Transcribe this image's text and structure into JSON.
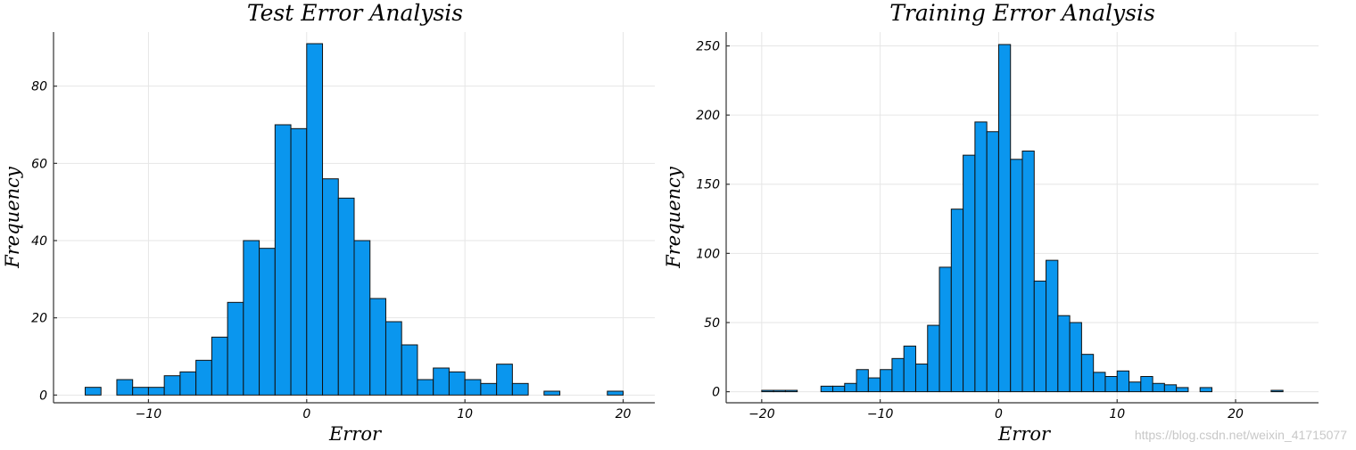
{
  "watermark": "https://blog.csdn.net/weixin_41715077",
  "chart_data": [
    {
      "type": "bar",
      "title": "Test Error Analysis",
      "xlabel": "Error",
      "ylabel": "Frequency",
      "xlim": [
        -16,
        22
      ],
      "ylim": [
        -2,
        94
      ],
      "xticks": [
        -10,
        0,
        10,
        20
      ],
      "xtick_labels": [
        "−10",
        "0",
        "10",
        "20"
      ],
      "yticks": [
        0,
        20,
        40,
        60,
        80
      ],
      "grid": true,
      "legend": false,
      "bar_color": "#0a96ee",
      "bin_width": 1,
      "bin_starts": [
        -14,
        -13,
        -12,
        -11,
        -10,
        -9,
        -8,
        -7,
        -6,
        -5,
        -4,
        -3,
        -2,
        -1,
        0,
        1,
        2,
        3,
        4,
        5,
        6,
        7,
        8,
        9,
        10,
        11,
        12,
        13,
        14,
        15,
        16,
        17,
        18,
        19
      ],
      "values": [
        2,
        0,
        4,
        2,
        2,
        5,
        6,
        9,
        15,
        24,
        40,
        38,
        70,
        69,
        91,
        56,
        51,
        40,
        25,
        19,
        13,
        4,
        7,
        6,
        4,
        3,
        8,
        3,
        0,
        1,
        0,
        0,
        0,
        1
      ]
    },
    {
      "type": "bar",
      "title": "Training Error Analysis",
      "xlabel": "Error",
      "ylabel": "Frequency",
      "xlim": [
        -23,
        27
      ],
      "ylim": [
        -8,
        260
      ],
      "xticks": [
        -20,
        -10,
        0,
        10,
        20
      ],
      "xtick_labels": [
        "−20",
        "−10",
        "0",
        "10",
        "20"
      ],
      "yticks": [
        0,
        50,
        100,
        150,
        200,
        250
      ],
      "grid": true,
      "legend": false,
      "bar_color": "#0a96ee",
      "bin_width": 1,
      "bin_starts": [
        -20,
        -19,
        -18,
        -17,
        -16,
        -15,
        -14,
        -13,
        -12,
        -11,
        -10,
        -9,
        -8,
        -7,
        -6,
        -5,
        -4,
        -3,
        -2,
        -1,
        0,
        1,
        2,
        3,
        4,
        5,
        6,
        7,
        8,
        9,
        10,
        11,
        12,
        13,
        14,
        15,
        16,
        17,
        18,
        19,
        20,
        21,
        22,
        23
      ],
      "values": [
        1,
        1,
        1,
        0,
        0,
        4,
        4,
        6,
        16,
        10,
        16,
        24,
        33,
        20,
        48,
        90,
        132,
        171,
        195,
        188,
        251,
        168,
        174,
        80,
        95,
        55,
        50,
        27,
        14,
        11,
        15,
        7,
        11,
        6,
        5,
        3,
        0,
        3,
        0,
        0,
        0,
        0,
        0,
        1
      ]
    }
  ]
}
